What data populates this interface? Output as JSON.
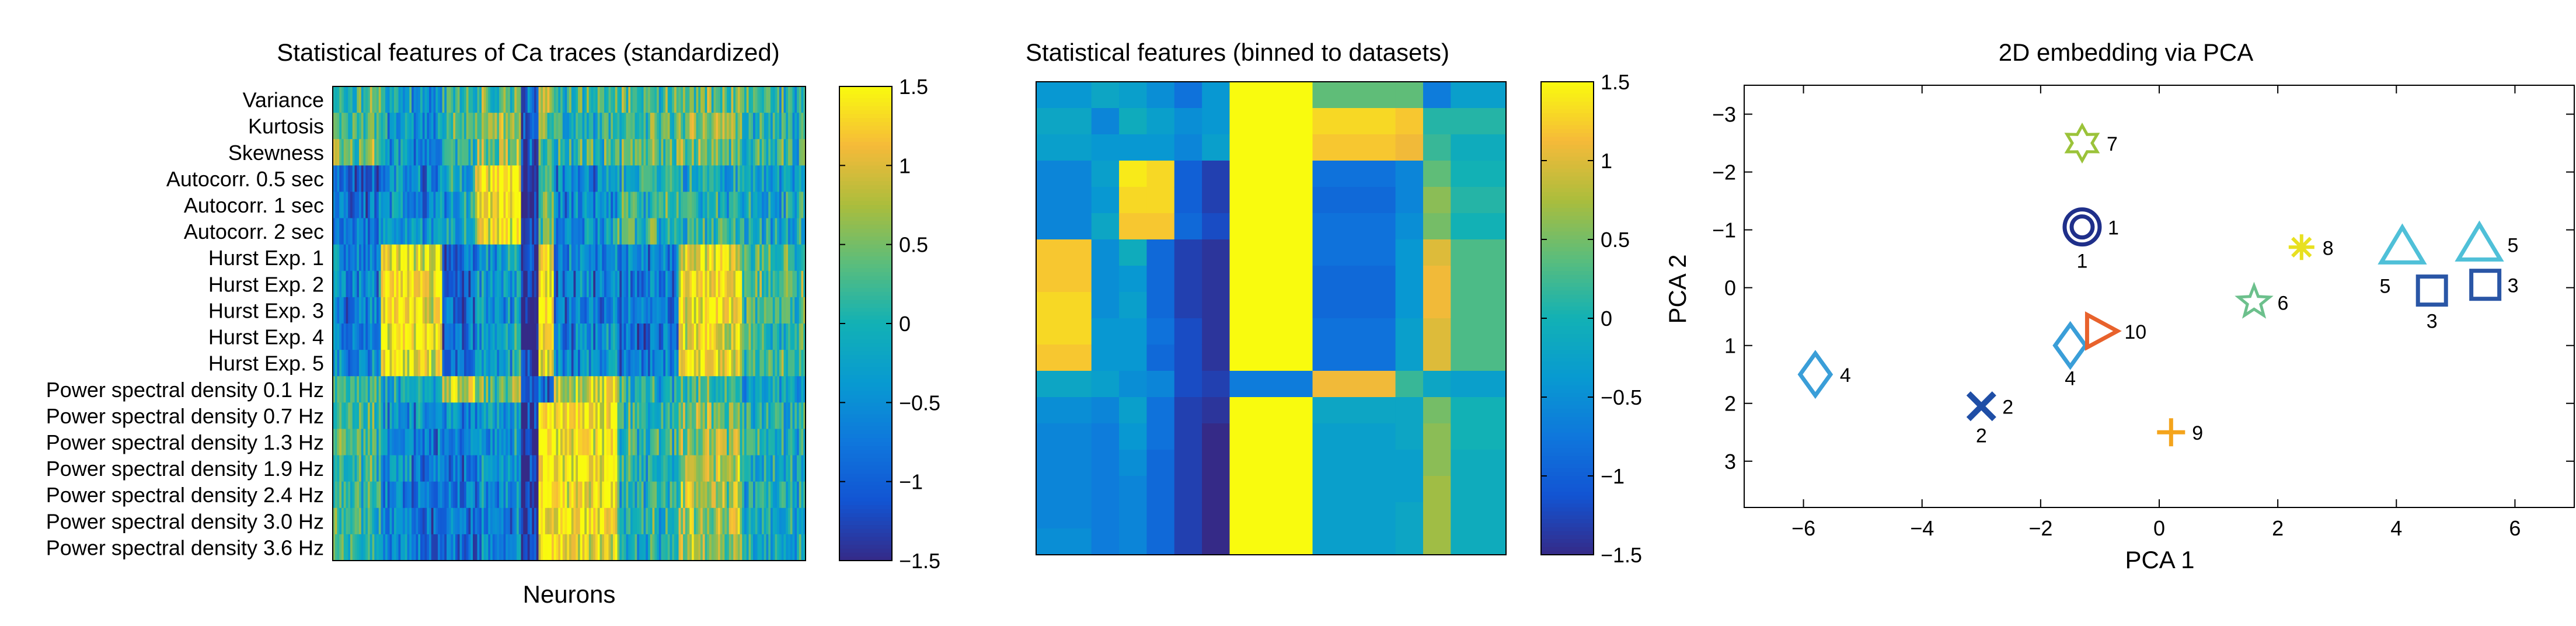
{
  "panels": {
    "heatmap1": {
      "title": "Statistical features of Ca traces (standardized)",
      "xlabel": "Neurons",
      "rows": [
        "Variance",
        "Kurtosis",
        "Skewness",
        "Autocorr. 0.5 sec",
        "Autocorr. 1 sec",
        "Autocorr. 2 sec",
        "Hurst Exp. 1",
        "Hurst Exp. 2",
        "Hurst Exp. 3",
        "Hurst Exp. 4",
        "Hurst Exp. 5",
        "Power spectral density 0.1 Hz",
        "Power spectral density 0.7 Hz",
        "Power spectral density 1.3 Hz",
        "Power spectral density 1.9 Hz",
        "Power spectral density 2.4 Hz",
        "Power spectral density 3.0 Hz",
        "Power spectral density 3.6 Hz"
      ],
      "colorbar_ticks": [
        "1.5",
        "1",
        "0.5",
        "0",
        "−0.5",
        "−1",
        "−1.5"
      ]
    },
    "heatmap2": {
      "title": "Statistical features (binned to datasets)",
      "colorbar_ticks": [
        "1.5",
        "1",
        "0.5",
        "0",
        "−0.5",
        "−1",
        "−1.5"
      ]
    },
    "scatter": {
      "title": "2D embedding via PCA",
      "xlabel": "PCA 1",
      "ylabel": "PCA 2"
    }
  },
  "chart_data": [
    {
      "type": "heatmap",
      "title": "Statistical features of Ca traces (standardized)",
      "xlabel": "Neurons",
      "rows": [
        "Variance",
        "Kurtosis",
        "Skewness",
        "Autocorr. 0.5 sec",
        "Autocorr. 1 sec",
        "Autocorr. 2 sec",
        "Hurst Exp. 1",
        "Hurst Exp. 2",
        "Hurst Exp. 3",
        "Hurst Exp. 4",
        "Hurst Exp. 5",
        "Power spectral density 0.1 Hz",
        "Power spectral density 0.7 Hz",
        "Power spectral density 1.3 Hz",
        "Power spectral density 1.9 Hz",
        "Power spectral density 2.4 Hz",
        "Power spectral density 3.0 Hz",
        "Power spectral density 3.6 Hz"
      ],
      "clim": [
        -1.5,
        1.5
      ],
      "colormap": "parula",
      "column_segments": [
        {
          "weight": 3,
          "values": [
            0.2,
            0.3,
            0.4,
            -1.0,
            -0.8,
            -0.7,
            -0.6,
            -0.6,
            -0.6,
            -0.5,
            -0.5,
            0.1,
            0.2,
            0.2,
            0.1,
            0.1,
            0.1,
            0.1
          ]
        },
        {
          "weight": 4,
          "values": [
            -0.3,
            -0.4,
            -0.5,
            -0.6,
            -0.5,
            -0.3,
            1.2,
            1.3,
            1.3,
            1.3,
            1.2,
            -0.2,
            -0.5,
            -0.6,
            -0.6,
            -0.6,
            -0.7,
            -0.6
          ]
        },
        {
          "weight": 2,
          "values": [
            0.1,
            0.2,
            0.1,
            -0.2,
            -0.3,
            -0.3,
            -0.9,
            -1.0,
            -1.0,
            -0.9,
            -0.9,
            1.0,
            -0.5,
            -0.7,
            -0.8,
            -0.8,
            -0.8,
            -0.9
          ]
        },
        {
          "weight": 3,
          "values": [
            0.4,
            0.6,
            0.5,
            1.3,
            1.3,
            1.2,
            -0.3,
            -0.4,
            -0.4,
            -0.3,
            -0.3,
            0.3,
            -0.3,
            -0.4,
            -0.5,
            -0.5,
            -0.6,
            -0.6
          ]
        },
        {
          "weight": 1,
          "values": [
            -0.9,
            -1.0,
            -1.1,
            -1.4,
            -1.4,
            -1.3,
            -1.3,
            -1.4,
            -1.4,
            -1.3,
            -1.3,
            -1.2,
            -1.4,
            -1.4,
            -1.4,
            -1.4,
            -1.4,
            -1.4
          ]
        },
        {
          "weight": 1,
          "values": [
            0.8,
            0.5,
            0.3,
            0.5,
            0.4,
            0.3,
            1.3,
            1.3,
            1.4,
            1.3,
            1.3,
            -0.8,
            1.4,
            1.5,
            1.5,
            1.5,
            1.5,
            1.5
          ]
        },
        {
          "weight": 4,
          "values": [
            0.1,
            0.0,
            0.2,
            -0.6,
            -0.6,
            -0.5,
            -0.6,
            -0.7,
            -0.7,
            -0.6,
            -0.6,
            1.0,
            1.3,
            1.3,
            1.2,
            1.2,
            1.2,
            1.1
          ]
        },
        {
          "weight": 4,
          "values": [
            0.3,
            0.2,
            0.3,
            0.0,
            0.1,
            0.1,
            -0.7,
            -0.8,
            -0.8,
            -0.8,
            -0.7,
            0.0,
            0.1,
            0.1,
            0.0,
            0.0,
            0.0,
            0.0
          ]
        },
        {
          "weight": 4,
          "values": [
            0.3,
            0.5,
            0.4,
            -0.2,
            -0.1,
            0.0,
            1.1,
            1.2,
            1.2,
            1.1,
            1.1,
            0.2,
            0.6,
            0.6,
            0.7,
            0.7,
            0.7,
            0.7
          ]
        },
        {
          "weight": 4,
          "values": [
            0.0,
            -0.1,
            0.0,
            -0.3,
            -0.2,
            -0.2,
            0.2,
            0.2,
            0.1,
            0.1,
            0.1,
            -0.3,
            -0.1,
            -0.1,
            -0.2,
            -0.2,
            -0.2,
            -0.2
          ]
        }
      ]
    },
    {
      "type": "heatmap",
      "title": "Statistical features (binned to datasets)",
      "clim": [
        -1.5,
        1.5
      ],
      "colormap": "parula",
      "n_rows": 18,
      "column_weights": [
        2,
        1,
        1,
        1,
        1,
        1,
        3,
        3,
        1,
        1,
        2
      ],
      "columns": [
        [
          -0.4,
          -0.2,
          -0.3,
          -0.6,
          -0.6,
          -0.6,
          1.2,
          1.2,
          1.3,
          1.3,
          1.2,
          -0.2,
          -0.5,
          -0.6,
          -0.6,
          -0.6,
          -0.6,
          -0.5
        ],
        [
          -0.2,
          -0.6,
          -0.4,
          -0.3,
          -0.4,
          -0.2,
          -0.5,
          -0.5,
          -0.5,
          -0.4,
          -0.4,
          -0.3,
          -0.6,
          -0.7,
          -0.7,
          -0.7,
          -0.7,
          -0.7
        ],
        [
          -0.3,
          -0.1,
          -0.4,
          1.4,
          1.3,
          1.2,
          -0.1,
          -0.4,
          -0.3,
          -0.4,
          -0.4,
          -0.5,
          -0.3,
          -0.4,
          -0.5,
          -0.6,
          -0.6,
          -0.6
        ],
        [
          -0.5,
          -0.3,
          -0.4,
          1.3,
          1.3,
          1.2,
          -0.9,
          -0.9,
          -0.9,
          -0.8,
          -0.9,
          -0.6,
          -0.8,
          -0.8,
          -0.9,
          -0.9,
          -0.9,
          -0.9
        ],
        [
          -0.8,
          -0.5,
          -0.6,
          -1.0,
          -1.0,
          -0.9,
          -1.3,
          -1.3,
          -1.3,
          -1.2,
          -1.2,
          -1.2,
          -1.3,
          -1.3,
          -1.3,
          -1.3,
          -1.3,
          -1.3
        ],
        [
          -0.4,
          -0.4,
          -0.3,
          -1.3,
          -1.3,
          -1.2,
          -1.4,
          -1.4,
          -1.4,
          -1.4,
          -1.4,
          -1.3,
          -1.4,
          -1.5,
          -1.5,
          -1.5,
          -1.5,
          -1.5
        ],
        [
          1.5,
          1.5,
          1.5,
          1.5,
          1.5,
          1.5,
          1.5,
          1.5,
          1.5,
          1.5,
          1.5,
          -0.7,
          1.5,
          1.5,
          1.5,
          1.5,
          1.5,
          1.5
        ],
        [
          0.4,
          1.3,
          1.2,
          -0.8,
          -0.9,
          -0.8,
          -0.8,
          -0.9,
          -0.9,
          -0.8,
          -0.8,
          1.1,
          -0.2,
          -0.3,
          -0.3,
          -0.3,
          -0.3,
          -0.3
        ],
        [
          0.4,
          1.2,
          1.1,
          -0.6,
          -0.6,
          -0.5,
          -0.4,
          -0.4,
          -0.4,
          -0.3,
          -0.3,
          0.2,
          -0.2,
          -0.2,
          -0.3,
          -0.3,
          -0.2,
          -0.2
        ],
        [
          -0.7,
          0.1,
          0.2,
          0.4,
          0.6,
          0.5,
          1.0,
          1.1,
          1.1,
          1.0,
          1.0,
          -0.2,
          0.5,
          0.6,
          0.6,
          0.7,
          0.7,
          0.7
        ],
        [
          -0.3,
          0.1,
          -0.1,
          0.0,
          0.1,
          0.0,
          0.3,
          0.3,
          0.3,
          0.3,
          0.3,
          -0.3,
          0.0,
          0.0,
          -0.1,
          -0.1,
          -0.1,
          -0.1
        ]
      ]
    },
    {
      "type": "scatter",
      "title": "2D embedding via PCA",
      "xlabel": "PCA 1",
      "ylabel": "PCA 2",
      "xlim": [
        -7,
        7
      ],
      "ylim": [
        -3.5,
        3.8
      ],
      "y_reversed": true,
      "xticks": [
        "−6",
        "−4",
        "−2",
        "0",
        "2",
        "4",
        "6"
      ],
      "yticks": [
        "−3",
        "−2",
        "−1",
        "0",
        "1",
        "2",
        "3"
      ],
      "points": [
        {
          "x": -1.3,
          "y": -1.05,
          "marker": "double-circle",
          "color": "#1f2f8a",
          "label": "1",
          "label_pos": "right",
          "label2": "1"
        },
        {
          "x": -3.0,
          "y": 2.05,
          "marker": "x",
          "color": "#1f4ea6",
          "label": "2",
          "label_pos": "right",
          "label2": "2"
        },
        {
          "x": 4.6,
          "y": 0.05,
          "marker": "square",
          "color": "#2a56a6",
          "label": "3",
          "label_pos": "below"
        },
        {
          "x": 5.5,
          "y": -0.05,
          "marker": "square",
          "color": "#2a56a6",
          "label": "3",
          "label_pos": "right"
        },
        {
          "x": -5.8,
          "y": 1.5,
          "marker": "diamond",
          "color": "#3a9ed8",
          "label": "4",
          "label_pos": "right"
        },
        {
          "x": -1.5,
          "y": 1.0,
          "marker": "diamond",
          "color": "#3a9ed8",
          "label": "4",
          "label_pos": "below"
        },
        {
          "x": 4.1,
          "y": -0.7,
          "marker": "triangle",
          "color": "#4fc0d8",
          "label": "5",
          "label_pos": "below-left"
        },
        {
          "x": 5.4,
          "y": -0.75,
          "marker": "triangle",
          "color": "#4fc0d8",
          "label": "5",
          "label_pos": "right"
        },
        {
          "x": 1.6,
          "y": 0.25,
          "marker": "star",
          "color": "#6cc08c",
          "label": "6",
          "label_pos": "right"
        },
        {
          "x": -1.3,
          "y": -2.5,
          "marker": "hexagram",
          "color": "#9bc33a",
          "label": "7",
          "label_pos": "right"
        },
        {
          "x": 2.4,
          "y": -0.7,
          "marker": "asterisk",
          "color": "#e8e020",
          "label": "8",
          "label_pos": "right"
        },
        {
          "x": 0.2,
          "y": 2.5,
          "marker": "plus",
          "color": "#f4a41c",
          "label": "9",
          "label_pos": "right"
        },
        {
          "x": -1.0,
          "y": 0.75,
          "marker": "triangle-right",
          "color": "#e8622c",
          "label": "10",
          "label_pos": "right"
        }
      ]
    }
  ]
}
